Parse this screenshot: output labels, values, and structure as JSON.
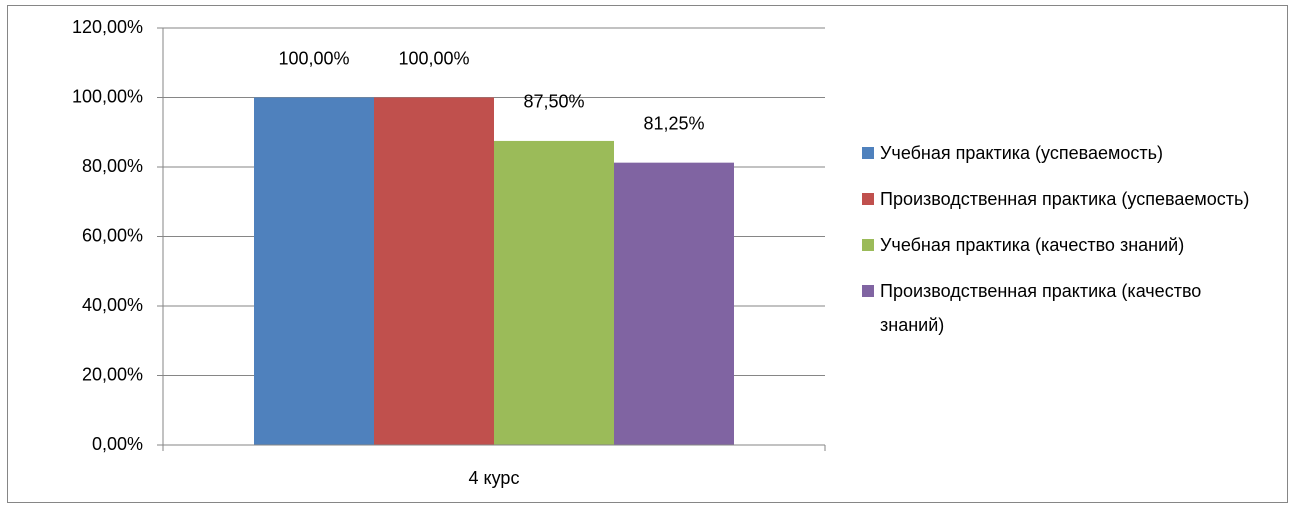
{
  "chart_data": {
    "type": "bar",
    "categories": [
      "4 курс"
    ],
    "series": [
      {
        "name": "Учебная практика (успеваемость)",
        "color": "#4f81bd",
        "values": [
          100
        ],
        "value_labels": [
          "100,00%"
        ]
      },
      {
        "name": "Производственная практика (успеваемость)",
        "color": "#c0504d",
        "values": [
          100
        ],
        "value_labels": [
          "100,00%"
        ]
      },
      {
        "name": "Учебная практика (качество знаний)",
        "color": "#9bbb59",
        "values": [
          87.5
        ],
        "value_labels": [
          "87,50%"
        ]
      },
      {
        "name": "Производственная практика (качество знаний)",
        "color": "#8064a2",
        "values": [
          81.25
        ],
        "value_labels": [
          "81,25%"
        ]
      }
    ],
    "ylim": [
      0,
      120
    ],
    "yticks": [
      {
        "value": 0,
        "label": "0,00%"
      },
      {
        "value": 20,
        "label": "20,00%"
      },
      {
        "value": 40,
        "label": "40,00%"
      },
      {
        "value": 60,
        "label": "60,00%"
      },
      {
        "value": 80,
        "label": "80,00%"
      },
      {
        "value": 100,
        "label": "100,00%"
      },
      {
        "value": 120,
        "label": "120,00%"
      }
    ],
    "grid": true,
    "legend": "right"
  }
}
